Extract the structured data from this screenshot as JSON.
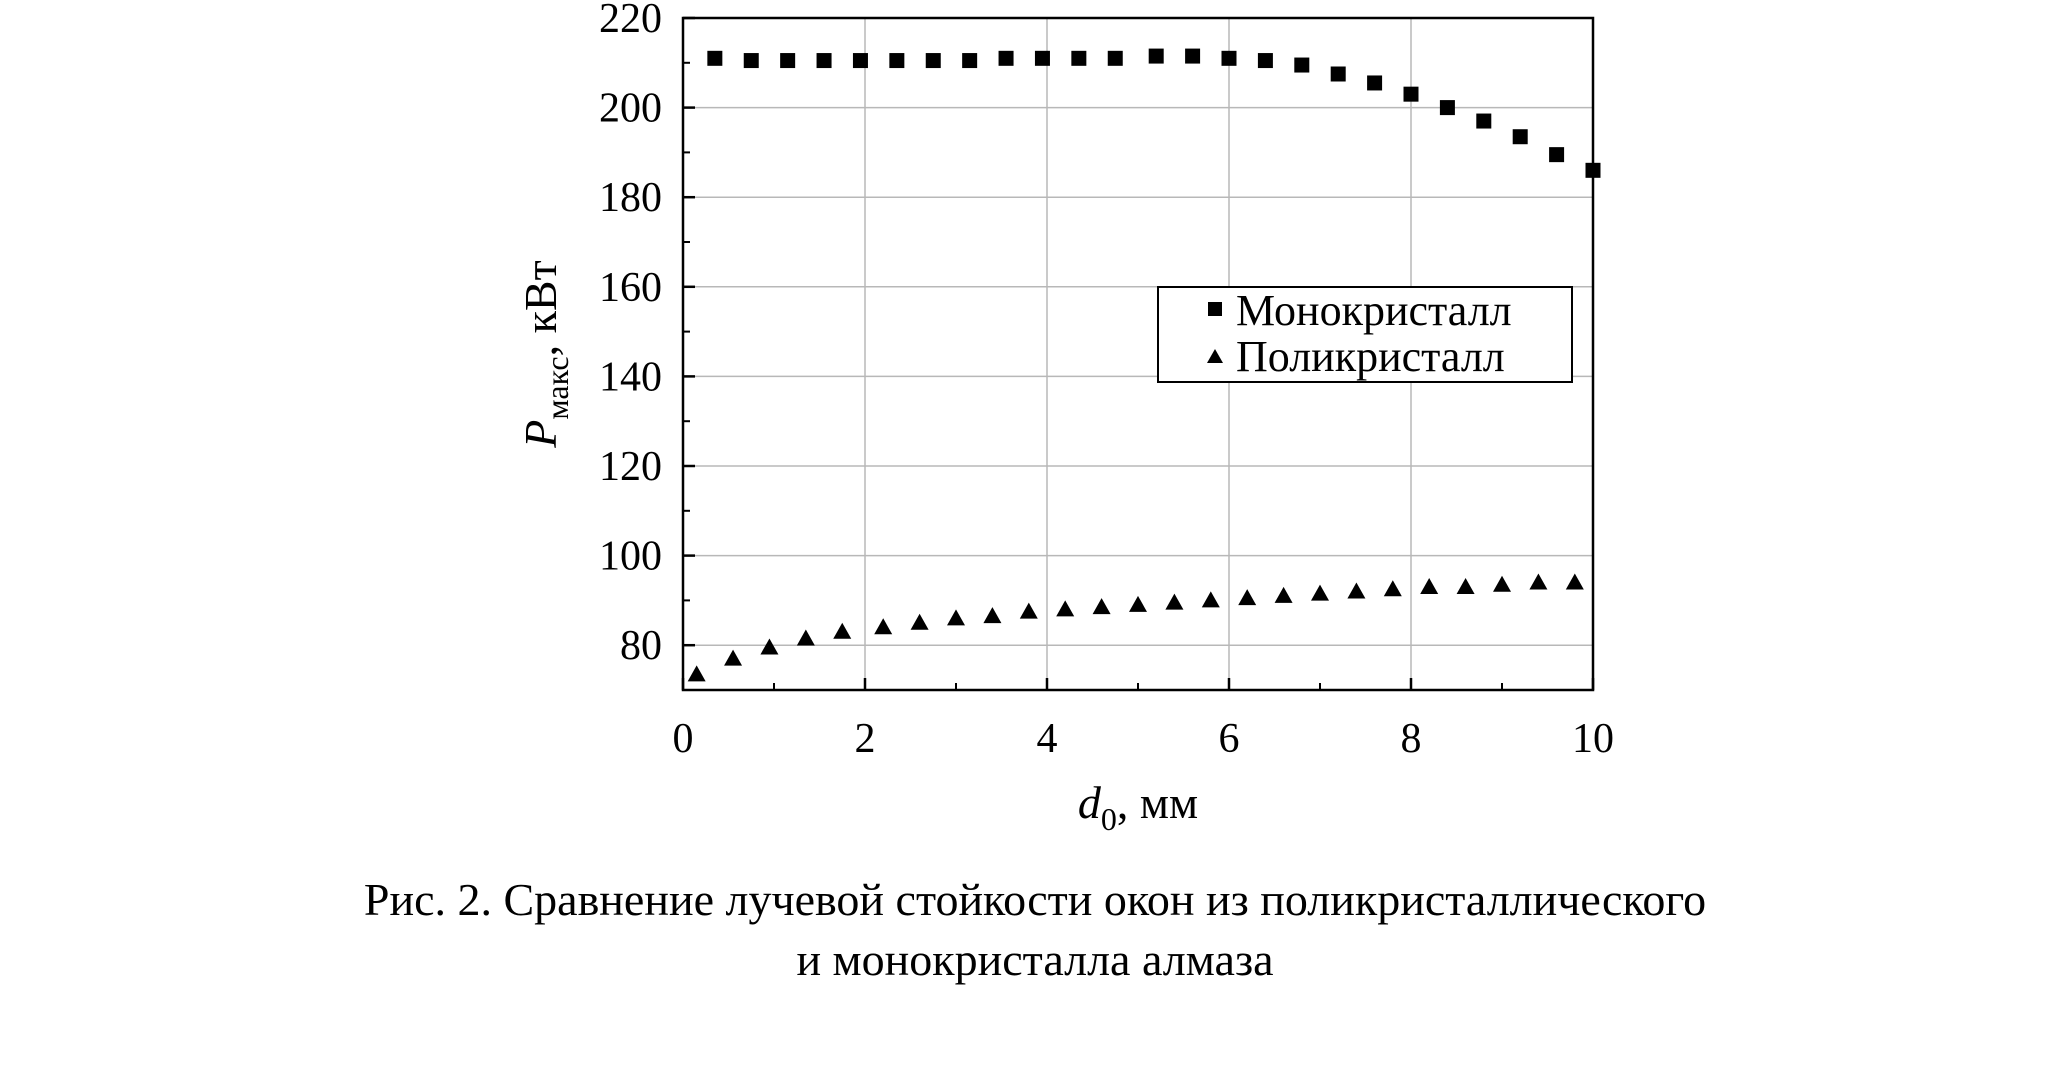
{
  "chart_data": {
    "type": "scatter",
    "xlabel": {
      "main": "d",
      "sub": "0",
      "rest": ", мм"
    },
    "ylabel": {
      "main": "P",
      "sub": "макс",
      "rest": ", кВт"
    },
    "xlim": [
      0,
      10
    ],
    "ylim": [
      70,
      220
    ],
    "xticks": [
      "0",
      "2",
      "4",
      "6",
      "8",
      "10"
    ],
    "yticks": [
      "80",
      "100",
      "120",
      "140",
      "160",
      "180",
      "200",
      "220"
    ],
    "grid": true,
    "legend_position": "center-right",
    "series": [
      {
        "name": "Монокристалл",
        "marker": "square",
        "x": [
          0.35,
          0.75,
          1.15,
          1.55,
          1.95,
          2.35,
          2.75,
          3.15,
          3.55,
          3.95,
          4.35,
          4.75,
          5.2,
          5.6,
          6.0,
          6.4,
          6.8,
          7.2,
          7.6,
          8.0,
          8.4,
          8.8,
          9.2,
          9.6,
          10.0
        ],
        "y": [
          211,
          210.5,
          210.5,
          210.5,
          210.5,
          210.5,
          210.5,
          210.5,
          211,
          211,
          211,
          211,
          211.5,
          211.5,
          211,
          210.5,
          209.5,
          207.5,
          205.5,
          203,
          200,
          197,
          193.5,
          189.5,
          186
        ]
      },
      {
        "name": "Поликристалл",
        "marker": "triangle",
        "x": [
          0.15,
          0.55,
          0.95,
          1.35,
          1.75,
          2.2,
          2.6,
          3.0,
          3.4,
          3.8,
          4.2,
          4.6,
          5.0,
          5.4,
          5.8,
          6.2,
          6.6,
          7.0,
          7.4,
          7.8,
          8.2,
          8.6,
          9.0,
          9.4,
          9.8
        ],
        "y": [
          73.5,
          77,
          79.5,
          81.5,
          83,
          84,
          85,
          86,
          86.5,
          87.5,
          88,
          88.5,
          89,
          89.5,
          90,
          90.5,
          91,
          91.5,
          92,
          92.5,
          93,
          93,
          93.5,
          94,
          94
        ]
      }
    ]
  },
  "caption": {
    "line1": "Рис. 2. Сравнение лучевой стойкости окон из поликристаллического",
    "line2": "и монокристалла алмаза"
  }
}
